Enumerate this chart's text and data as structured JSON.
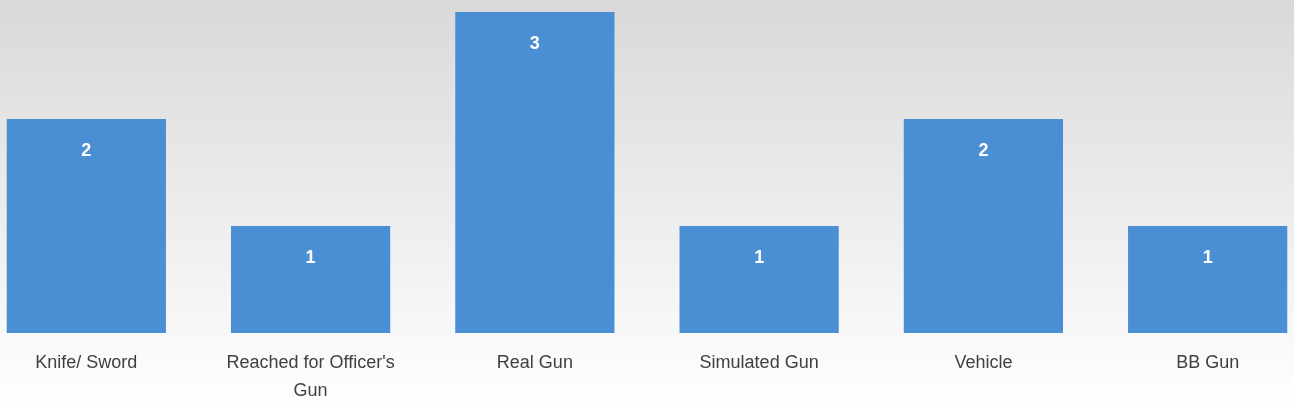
{
  "chart_data": {
    "type": "bar",
    "categories": [
      "Knife/ Sword",
      "Reached for Officer's Gun",
      "Real Gun",
      "Simulated Gun",
      "Vehicle",
      "BB Gun"
    ],
    "values": [
      2,
      1,
      3,
      1,
      2,
      1
    ],
    "color": "#4a8fd4",
    "data_labels": true
  }
}
